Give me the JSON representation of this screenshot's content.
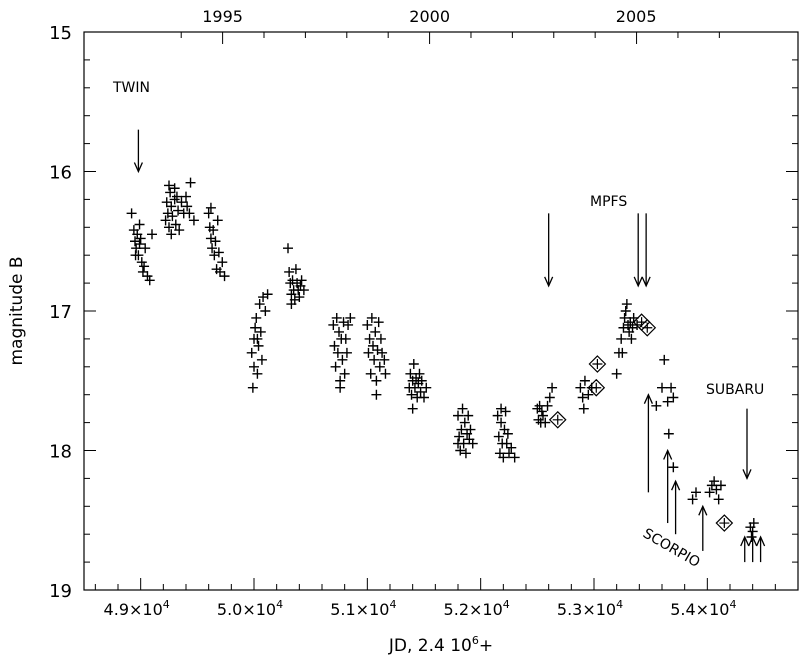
{
  "chart_data": {
    "type": "scatter",
    "title": "",
    "xlabel": "JD, 2.4 10",
    "xlabel_sup": "6",
    "xlabel_suffix": "+",
    "ylabel": "magnitude B",
    "xlim": [
      48500,
      54800
    ],
    "ylim": [
      19,
      15
    ],
    "y_inverted": true,
    "grid": false,
    "x_ticks": [
      {
        "value": 49000,
        "mant": "4.9×10",
        "exp": "4"
      },
      {
        "value": 50000,
        "mant": "5.0×10",
        "exp": "4"
      },
      {
        "value": 51000,
        "mant": "5.1×10",
        "exp": "4"
      },
      {
        "value": 52000,
        "mant": "5.2×10",
        "exp": "4"
      },
      {
        "value": 53000,
        "mant": "5.3×10",
        "exp": "4"
      },
      {
        "value": 54000,
        "mant": "5.4×10",
        "exp": "4"
      }
    ],
    "y_ticks": [
      {
        "value": 15,
        "label": "15"
      },
      {
        "value": 16,
        "label": "16"
      },
      {
        "value": 17,
        "label": "17"
      },
      {
        "value": 18,
        "label": "18"
      },
      {
        "value": 19,
        "label": "19"
      }
    ],
    "top_axis_ticks": [
      {
        "value": 49723,
        "label": "1995"
      },
      {
        "value": 51550,
        "label": "2000"
      },
      {
        "value": 53372,
        "label": "2005"
      }
    ],
    "series": [
      {
        "marker": "plus",
        "points": [
          [
            48920,
            16.3
          ],
          [
            48940,
            16.42
          ],
          [
            48950,
            16.5
          ],
          [
            48960,
            16.55
          ],
          [
            48970,
            16.45
          ],
          [
            48980,
            16.6
          ],
          [
            48990,
            16.38
          ],
          [
            49000,
            16.48
          ],
          [
            49010,
            16.65
          ],
          [
            49020,
            16.72
          ],
          [
            49030,
            16.68
          ],
          [
            49040,
            16.55
          ],
          [
            49060,
            16.75
          ],
          [
            49080,
            16.78
          ],
          [
            49100,
            16.45
          ],
          [
            48955,
            16.6
          ],
          [
            48990,
            16.52
          ],
          [
            49220,
            16.35
          ],
          [
            49230,
            16.22
          ],
          [
            49240,
            16.3
          ],
          [
            49250,
            16.4
          ],
          [
            49260,
            16.15
          ],
          [
            49270,
            16.25
          ],
          [
            49280,
            16.32
          ],
          [
            49300,
            16.2
          ],
          [
            49310,
            16.38
          ],
          [
            49320,
            16.18
          ],
          [
            49330,
            16.28
          ],
          [
            49340,
            16.42
          ],
          [
            49360,
            16.22
          ],
          [
            49380,
            16.3
          ],
          [
            49400,
            16.18
          ],
          [
            49410,
            16.25
          ],
          [
            49430,
            16.3
          ],
          [
            49250,
            16.1
          ],
          [
            49300,
            16.12
          ],
          [
            49440,
            16.08
          ],
          [
            49470,
            16.35
          ],
          [
            49270,
            16.45
          ],
          [
            49600,
            16.3
          ],
          [
            49610,
            16.4
          ],
          [
            49620,
            16.48
          ],
          [
            49630,
            16.55
          ],
          [
            49640,
            16.42
          ],
          [
            49650,
            16.6
          ],
          [
            49660,
            16.5
          ],
          [
            49670,
            16.7
          ],
          [
            49680,
            16.35
          ],
          [
            49690,
            16.58
          ],
          [
            49700,
            16.72
          ],
          [
            49720,
            16.65
          ],
          [
            49740,
            16.75
          ],
          [
            49620,
            16.26
          ],
          [
            49980,
            17.3
          ],
          [
            49990,
            17.55
          ],
          [
            50000,
            17.2
          ],
          [
            50010,
            17.12
          ],
          [
            50020,
            17.05
          ],
          [
            50030,
            17.45
          ],
          [
            50040,
            17.25
          ],
          [
            50050,
            16.95
          ],
          [
            50060,
            17.15
          ],
          [
            50070,
            17.35
          ],
          [
            50080,
            16.9
          ],
          [
            50100,
            17.0
          ],
          [
            50120,
            16.88
          ],
          [
            50000,
            17.4
          ],
          [
            50030,
            17.2
          ],
          [
            50300,
            16.55
          ],
          [
            50310,
            16.72
          ],
          [
            50320,
            16.8
          ],
          [
            50330,
            16.88
          ],
          [
            50340,
            16.78
          ],
          [
            50350,
            16.85
          ],
          [
            50360,
            16.92
          ],
          [
            50370,
            16.7
          ],
          [
            50380,
            16.8
          ],
          [
            50390,
            16.85
          ],
          [
            50400,
            16.9
          ],
          [
            50410,
            16.82
          ],
          [
            50420,
            16.78
          ],
          [
            50440,
            16.85
          ],
          [
            50330,
            16.95
          ],
          [
            50700,
            17.1
          ],
          [
            50710,
            17.25
          ],
          [
            50720,
            17.4
          ],
          [
            50730,
            17.05
          ],
          [
            50740,
            17.3
          ],
          [
            50750,
            17.15
          ],
          [
            50760,
            17.5
          ],
          [
            50770,
            17.2
          ],
          [
            50780,
            17.35
          ],
          [
            50790,
            17.08
          ],
          [
            50800,
            17.45
          ],
          [
            50810,
            17.2
          ],
          [
            50820,
            17.3
          ],
          [
            50830,
            17.1
          ],
          [
            50850,
            17.05
          ],
          [
            50760,
            17.55
          ],
          [
            51000,
            17.1
          ],
          [
            51010,
            17.3
          ],
          [
            51020,
            17.2
          ],
          [
            51030,
            17.45
          ],
          [
            51040,
            17.05
          ],
          [
            51050,
            17.25
          ],
          [
            51060,
            17.35
          ],
          [
            51070,
            17.15
          ],
          [
            51080,
            17.5
          ],
          [
            51090,
            17.28
          ],
          [
            51100,
            17.08
          ],
          [
            51110,
            17.4
          ],
          [
            51120,
            17.2
          ],
          [
            51130,
            17.3
          ],
          [
            51150,
            17.35
          ],
          [
            51160,
            17.45
          ],
          [
            51080,
            17.6
          ],
          [
            51370,
            17.55
          ],
          [
            51380,
            17.45
          ],
          [
            51390,
            17.6
          ],
          [
            51400,
            17.5
          ],
          [
            51410,
            17.38
          ],
          [
            51420,
            17.55
          ],
          [
            51430,
            17.48
          ],
          [
            51440,
            17.62
          ],
          [
            51450,
            17.52
          ],
          [
            51460,
            17.45
          ],
          [
            51470,
            17.58
          ],
          [
            51480,
            17.5
          ],
          [
            51500,
            17.62
          ],
          [
            51520,
            17.55
          ],
          [
            51400,
            17.7
          ],
          [
            51800,
            17.75
          ],
          [
            51810,
            17.9
          ],
          [
            51820,
            18.0
          ],
          [
            51830,
            17.85
          ],
          [
            51840,
            17.7
          ],
          [
            51850,
            17.95
          ],
          [
            51860,
            17.8
          ],
          [
            51870,
            18.02
          ],
          [
            51880,
            17.88
          ],
          [
            51890,
            17.75
          ],
          [
            51900,
            17.92
          ],
          [
            51910,
            17.85
          ],
          [
            51930,
            17.95
          ],
          [
            51800,
            17.95
          ],
          [
            52150,
            17.75
          ],
          [
            52160,
            17.9
          ],
          [
            52170,
            18.02
          ],
          [
            52180,
            17.8
          ],
          [
            52190,
            17.95
          ],
          [
            52200,
            18.05
          ],
          [
            52210,
            17.85
          ],
          [
            52220,
            17.72
          ],
          [
            52230,
            17.95
          ],
          [
            52240,
            17.88
          ],
          [
            52250,
            18.02
          ],
          [
            52270,
            17.98
          ],
          [
            52300,
            18.05
          ],
          [
            52180,
            17.7
          ],
          [
            52500,
            17.7
          ],
          [
            52510,
            17.78
          ],
          [
            52520,
            17.68
          ],
          [
            52530,
            17.8
          ],
          [
            52540,
            17.72
          ],
          [
            52550,
            17.75
          ],
          [
            52570,
            17.8
          ],
          [
            52590,
            17.68
          ],
          [
            52610,
            17.62
          ],
          [
            52630,
            17.55
          ],
          [
            52880,
            17.55
          ],
          [
            52900,
            17.62
          ],
          [
            52910,
            17.7
          ],
          [
            52920,
            17.5
          ],
          [
            52950,
            17.6
          ],
          [
            52980,
            17.55
          ],
          [
            53200,
            17.45
          ],
          [
            53220,
            17.3
          ],
          [
            53240,
            17.2
          ],
          [
            53260,
            17.12
          ],
          [
            53270,
            17.05
          ],
          [
            53280,
            17.0
          ],
          [
            53290,
            16.95
          ],
          [
            53300,
            17.1
          ],
          [
            53310,
            17.15
          ],
          [
            53320,
            17.08
          ],
          [
            53330,
            17.2
          ],
          [
            53340,
            17.12
          ],
          [
            53350,
            17.05
          ],
          [
            53380,
            17.1
          ],
          [
            53250,
            17.3
          ],
          [
            53550,
            17.68
          ],
          [
            53600,
            17.55
          ],
          [
            53620,
            17.35
          ],
          [
            53650,
            17.65
          ],
          [
            53680,
            17.55
          ],
          [
            53700,
            17.62
          ],
          [
            53660,
            17.88
          ],
          [
            53700,
            18.12
          ],
          [
            53870,
            18.35
          ],
          [
            53900,
            18.3
          ],
          [
            54020,
            18.3
          ],
          [
            54040,
            18.25
          ],
          [
            54060,
            18.22
          ],
          [
            54080,
            18.28
          ],
          [
            54100,
            18.35
          ],
          [
            54120,
            18.25
          ],
          [
            54380,
            18.55
          ],
          [
            54390,
            18.62
          ],
          [
            54400,
            18.58
          ],
          [
            54410,
            18.52
          ]
        ]
      },
      {
        "marker": "diamond",
        "points": [
          [
            52680,
            17.78
          ],
          [
            53030,
            17.38
          ],
          [
            53020,
            17.55
          ],
          [
            53420,
            17.08
          ],
          [
            53470,
            17.12
          ],
          [
            54150,
            18.52
          ]
        ]
      }
    ],
    "annotations": [
      {
        "text": "TWIN"
      },
      {
        "text": "MPFS"
      },
      {
        "text": "SUBARU"
      },
      {
        "text": "SCORPIO"
      }
    ],
    "arrows": [
      {
        "x": 48980,
        "from_y": 15.7,
        "to_y": 16.0
      },
      {
        "x": 52600,
        "from_y": 16.3,
        "to_y": 16.82
      },
      {
        "x": 53390,
        "from_y": 16.3,
        "to_y": 16.82
      },
      {
        "x": 53460,
        "from_y": 16.3,
        "to_y": 16.82
      },
      {
        "x": 54350,
        "from_y": 17.7,
        "to_y": 18.2
      },
      {
        "x": 53480,
        "from_y": 18.3,
        "to_y": 17.6
      },
      {
        "x": 53650,
        "from_y": 18.52,
        "to_y": 18.0
      },
      {
        "x": 53720,
        "from_y": 18.6,
        "to_y": 18.22
      },
      {
        "x": 53960,
        "from_y": 18.72,
        "to_y": 18.4
      },
      {
        "x": 54330,
        "from_y": 18.8,
        "to_y": 18.62
      },
      {
        "x": 54400,
        "from_y": 18.8,
        "to_y": 18.62
      },
      {
        "x": 54470,
        "from_y": 18.8,
        "to_y": 18.62
      }
    ]
  }
}
